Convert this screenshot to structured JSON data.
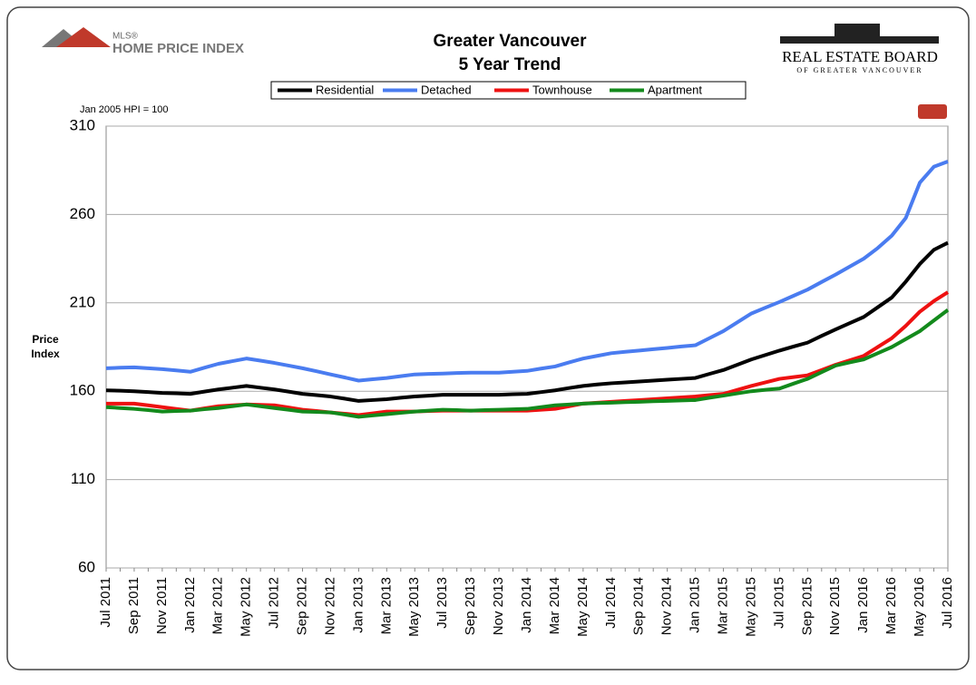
{
  "chart_data": {
    "type": "line",
    "title": "Greater Vancouver",
    "subtitle": "5 Year Trend",
    "annotation": "Jan 2005 HPI = 100",
    "y_label": "Price Index",
    "logos": {
      "mls_small": "MLS®",
      "mls_name": "HOME PRICE INDEX",
      "board": "REAL ESTATE BOARD",
      "board_sub": "OF GREATER VANCOUVER"
    },
    "categories": [
      "Jul 2011",
      null,
      "Sep 2011",
      null,
      "Nov 2011",
      null,
      "Jan 2012",
      null,
      "Mar 2012",
      null,
      "May 2012",
      null,
      "Jul 2012",
      null,
      "Sep 2012",
      null,
      "Nov 2012",
      null,
      "Jan 2013",
      null,
      "Mar 2013",
      null,
      "May 2013",
      null,
      "Jul 2013",
      null,
      "Sep 2013",
      null,
      "Nov 2013",
      null,
      "Jan 2014",
      null,
      "Mar 2014",
      null,
      "May 2014",
      null,
      "Jul 2014",
      null,
      "Sep 2014",
      null,
      "Nov 2014",
      null,
      "Jan 2015",
      null,
      "Mar 2015",
      null,
      "May 2015",
      null,
      "Jul 2015",
      null,
      "Sep 2015",
      null,
      "Nov 2015",
      null,
      "Jan 2016",
      null,
      "Mar 2016",
      null,
      "May 2016",
      null,
      "Jul 2016"
    ],
    "series": [
      {
        "name": "Residential",
        "color": "#000000",
        "values": [
          160.5,
          160.3,
          160,
          159.5,
          159,
          158.8,
          158.5,
          159.8,
          161,
          162,
          163,
          162,
          161,
          159.8,
          158.5,
          157.8,
          157,
          155.8,
          154.5,
          155,
          155.5,
          156.3,
          157,
          157.5,
          158,
          158,
          158,
          158,
          158,
          158.3,
          158.5,
          159.5,
          160.5,
          161.8,
          163,
          163.8,
          164.5,
          165,
          165.5,
          166,
          166.5,
          167,
          167.5,
          169.8,
          172,
          175,
          178,
          180.5,
          183,
          185.3,
          187.5,
          191.3,
          195,
          198.5,
          202,
          207.5,
          213,
          222,
          232,
          240,
          244
        ]
      },
      {
        "name": "Detached",
        "color": "#4a7cf0",
        "values": [
          173,
          173.3,
          173.5,
          173,
          172.5,
          171.8,
          171,
          173.3,
          175.5,
          177,
          178.5,
          177.3,
          176,
          174.5,
          173,
          171.3,
          169.5,
          167.8,
          166,
          166.8,
          167.5,
          168.5,
          169.5,
          169.8,
          170,
          170.3,
          170.5,
          170.5,
          170.5,
          171,
          171.5,
          172.8,
          174,
          176.3,
          178.5,
          180,
          181.5,
          182.3,
          183,
          183.8,
          184.5,
          185.3,
          186,
          190,
          194,
          199,
          204,
          207.3,
          210.5,
          214,
          217.5,
          221.8,
          226,
          230.5,
          235,
          241,
          248,
          258,
          278,
          287,
          290
        ]
      },
      {
        "name": "Townhouse",
        "color": "#ee1111",
        "values": [
          153,
          153,
          153,
          152,
          151,
          150,
          149,
          150.3,
          151.5,
          152,
          152.5,
          152.3,
          152,
          150.8,
          149.5,
          148.8,
          148,
          147.3,
          146.5,
          147.5,
          148.5,
          148.5,
          148.5,
          148.8,
          149,
          149,
          149,
          149,
          149,
          149,
          149,
          149.5,
          150,
          151.5,
          153,
          153.5,
          154,
          154.5,
          155,
          155.5,
          156,
          156.5,
          157,
          157.8,
          158.5,
          160.8,
          163,
          165,
          167,
          168,
          169,
          172,
          175,
          177.5,
          180,
          185,
          190,
          197,
          205,
          211,
          216
        ]
      },
      {
        "name": "Apartment",
        "color": "#138a1c",
        "values": [
          151,
          150.5,
          150,
          149.3,
          148.5,
          148.8,
          149,
          149.8,
          150.5,
          151.5,
          152.5,
          151.5,
          150.5,
          149.5,
          148.5,
          148.3,
          148,
          146.8,
          145.5,
          146.3,
          147,
          147.8,
          148.5,
          149,
          149.5,
          149.3,
          149,
          149.3,
          149.5,
          149.8,
          150,
          151,
          152,
          152.5,
          153,
          153.3,
          153.5,
          153.8,
          154,
          154.3,
          154.5,
          154.8,
          155,
          156.3,
          157.5,
          158.8,
          160,
          160.8,
          161.5,
          164.3,
          167,
          170.8,
          174.5,
          176.3,
          178,
          181.5,
          185,
          189.5,
          194,
          200,
          206
        ]
      }
    ],
    "ylim": [
      60,
      310
    ],
    "yticks": [
      60,
      110,
      160,
      210,
      260,
      310
    ],
    "grid": true,
    "legend": "top"
  }
}
